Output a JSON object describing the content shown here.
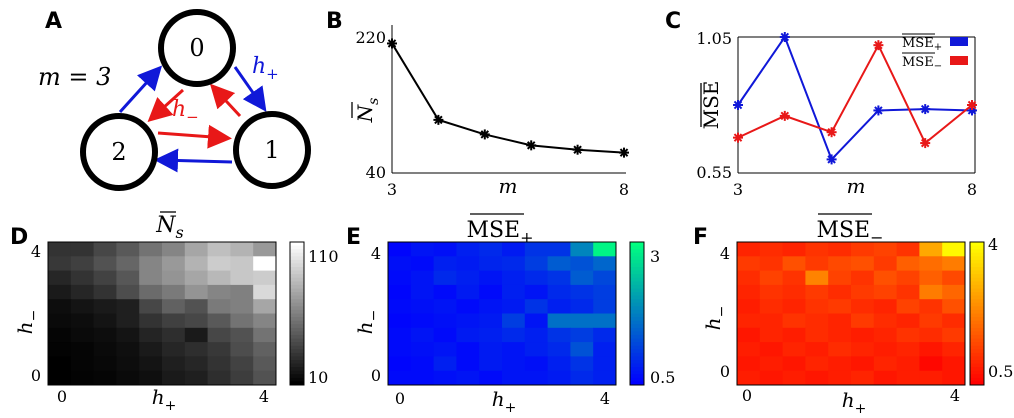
{
  "panels": {
    "A": "A",
    "B": "B",
    "C": "C",
    "D": "D",
    "E": "E",
    "F": "F"
  },
  "diagram": {
    "m_label": "m = 3",
    "nodes": [
      "0",
      "1",
      "2"
    ],
    "h_plus": "h",
    "h_plus_sub": "+",
    "h_minus": "h",
    "h_minus_sub": "−",
    "colors": {
      "plus": "#1018d8",
      "minus": "#e81818"
    }
  },
  "chart_data": [
    {
      "type": "line",
      "panel": "B",
      "ylabel": "N",
      "ylabel_sub": "s",
      "xlabel": "m",
      "x": [
        3,
        4,
        5,
        6,
        7,
        8
      ],
      "series": [
        {
          "values": [
            218,
            113,
            93,
            78,
            72,
            68
          ],
          "color": "#000000"
        }
      ],
      "xlim": [
        3,
        8
      ],
      "ylim": [
        40,
        220
      ],
      "xticks": [
        "3",
        "8"
      ],
      "yticks": [
        "40",
        "220"
      ],
      "marker": "asterisk"
    },
    {
      "type": "line",
      "panel": "C",
      "ylabel": "MSE",
      "xlabel": "m",
      "x": [
        3,
        4,
        5,
        6,
        7,
        8
      ],
      "series": [
        {
          "name": "MSE+",
          "label": "MSE",
          "sub": "+",
          "values": [
            0.8,
            1.05,
            0.6,
            0.78,
            0.785,
            0.78
          ],
          "color": "#1018d8"
        },
        {
          "name": "MSE−",
          "label": "MSE",
          "sub": "−",
          "values": [
            0.68,
            0.76,
            0.7,
            1.02,
            0.66,
            0.8
          ],
          "color": "#e81818"
        }
      ],
      "xlim": [
        3,
        8
      ],
      "ylim": [
        0.55,
        1.05
      ],
      "xticks": [
        "3",
        "8"
      ],
      "yticks": [
        "0.55",
        "1.05"
      ],
      "legend": "top-right",
      "marker": "asterisk"
    },
    {
      "type": "heatmap",
      "panel": "D",
      "title": "N",
      "title_sub": "s",
      "xlabel": "h",
      "xlabel_sub": "+",
      "ylabel": "h",
      "ylabel_sub": "−",
      "xticks": [
        "0",
        "4"
      ],
      "yticks": [
        "0",
        "4"
      ],
      "colorbar": {
        "min": 10,
        "max": 110,
        "ticks": [
          "110",
          "10"
        ],
        "colormap": "gray"
      },
      "rows_top_to_bottom": [
        [
          30,
          30,
          38,
          45,
          55,
          62,
          75,
          85,
          80,
          70
        ],
        [
          32,
          35,
          42,
          50,
          62,
          70,
          80,
          90,
          88,
          110
        ],
        [
          25,
          30,
          36,
          44,
          62,
          68,
          75,
          82,
          88,
          90
        ],
        [
          20,
          25,
          30,
          40,
          52,
          58,
          68,
          62,
          60,
          95
        ],
        [
          15,
          18,
          20,
          22,
          38,
          48,
          42,
          58,
          60,
          75
        ],
        [
          14,
          15,
          18,
          22,
          30,
          35,
          38,
          45,
          55,
          62
        ],
        [
          12,
          14,
          15,
          18,
          24,
          28,
          20,
          38,
          42,
          55
        ],
        [
          11,
          12,
          14,
          16,
          20,
          25,
          28,
          32,
          40,
          48
        ],
        [
          10,
          12,
          13,
          15,
          18,
          22,
          25,
          30,
          36,
          45
        ],
        [
          10,
          11,
          12,
          14,
          16,
          20,
          22,
          28,
          34,
          42
        ]
      ]
    },
    {
      "type": "heatmap",
      "panel": "E",
      "title": "MSE",
      "title_sub": "+",
      "xlabel": "h",
      "xlabel_sub": "+",
      "ylabel": "h",
      "ylabel_sub": "−",
      "xticks": [
        "0",
        "4"
      ],
      "yticks": [
        "4",
        "0"
      ],
      "colorbar": {
        "min": 0.5,
        "max": 3,
        "ticks": [
          "3",
          "0.5"
        ],
        "colormap": "winter"
      },
      "rows_top_to_bottom": [
        [
          0.55,
          0.7,
          0.65,
          0.8,
          0.9,
          0.75,
          1.0,
          1.0,
          1.8,
          2.9
        ],
        [
          0.65,
          0.6,
          0.8,
          0.75,
          0.85,
          0.9,
          1.1,
          1.4,
          1.3,
          1.5
        ],
        [
          0.6,
          0.7,
          0.9,
          0.8,
          0.7,
          0.8,
          0.9,
          1.0,
          1.4,
          1.2
        ],
        [
          0.55,
          0.7,
          0.6,
          0.75,
          0.6,
          0.8,
          0.7,
          0.9,
          1.0,
          1.1
        ],
        [
          0.6,
          0.65,
          0.7,
          0.6,
          0.7,
          0.75,
          1.0,
          0.8,
          0.9,
          1.1
        ],
        [
          0.55,
          0.6,
          0.65,
          0.7,
          0.75,
          1.1,
          0.7,
          1.6,
          1.6,
          1.6
        ],
        [
          0.6,
          0.7,
          0.6,
          0.75,
          0.8,
          0.9,
          0.8,
          1.0,
          1.1,
          0.9
        ],
        [
          0.6,
          0.65,
          0.7,
          0.6,
          0.75,
          0.7,
          0.8,
          0.9,
          1.3,
          0.8
        ],
        [
          0.55,
          0.6,
          0.8,
          0.6,
          0.75,
          0.7,
          0.65,
          0.8,
          1.0,
          0.8
        ],
        [
          0.6,
          0.6,
          0.65,
          0.7,
          0.6,
          0.7,
          0.7,
          0.75,
          0.9,
          0.8
        ]
      ]
    },
    {
      "type": "heatmap",
      "panel": "F",
      "title": "MSE",
      "title_sub": "−",
      "xlabel": "h",
      "xlabel_sub": "+",
      "ylabel": "h",
      "ylabel_sub": "−",
      "xticks": [
        "0",
        "4"
      ],
      "yticks": [
        "4",
        "0"
      ],
      "colorbar": {
        "min": 0.5,
        "max": 4,
        "ticks": [
          "4",
          "0.5"
        ],
        "colormap": "autumn"
      },
      "rows_top_to_bottom": [
        [
          1.0,
          1.1,
          1.0,
          1.2,
          1.1,
          1.3,
          1.4,
          1.2,
          2.8,
          3.9
        ],
        [
          1.3,
          1.2,
          1.6,
          1.3,
          1.5,
          1.6,
          1.3,
          1.8,
          2.0,
          2.2
        ],
        [
          1.1,
          1.4,
          1.2,
          2.3,
          1.4,
          1.2,
          1.6,
          1.4,
          1.8,
          1.5
        ],
        [
          1.0,
          1.2,
          1.1,
          1.3,
          1.1,
          1.3,
          1.4,
          1.2,
          2.2,
          1.9
        ],
        [
          0.9,
          1.1,
          1.0,
          1.2,
          1.3,
          1.1,
          1.0,
          1.4,
          1.2,
          1.6
        ],
        [
          1.0,
          1.0,
          1.2,
          1.1,
          1.0,
          1.3,
          1.1,
          1.0,
          1.3,
          1.1
        ],
        [
          0.8,
          1.0,
          0.9,
          1.1,
          1.0,
          0.9,
          1.0,
          1.2,
          1.1,
          1.3
        ],
        [
          0.9,
          0.8,
          1.0,
          0.9,
          1.1,
          1.0,
          0.9,
          1.0,
          0.8,
          1.0
        ],
        [
          0.8,
          0.9,
          0.8,
          1.0,
          0.9,
          0.8,
          1.0,
          0.9,
          0.6,
          0.8
        ],
        [
          0.9,
          0.8,
          0.9,
          0.8,
          0.9,
          1.0,
          0.8,
          0.9,
          0.9,
          0.8
        ]
      ]
    }
  ]
}
